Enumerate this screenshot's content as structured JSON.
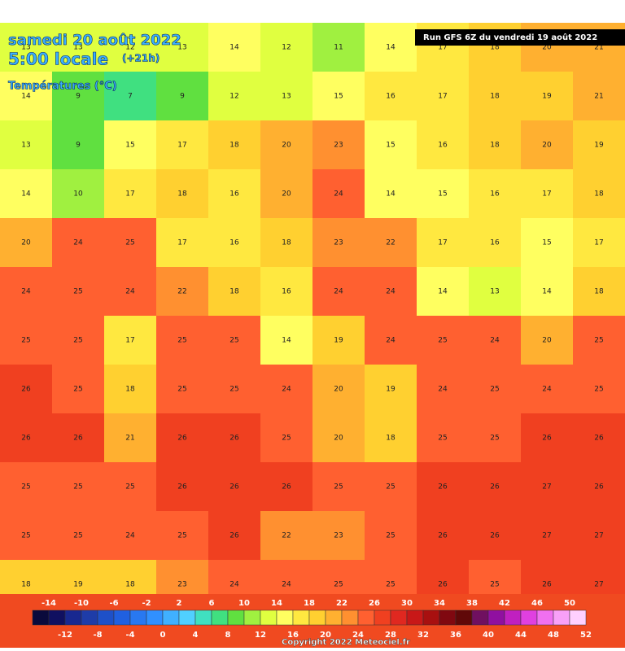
{
  "header": {
    "date": "samedi 20 août 2022",
    "time": "5:00 locale",
    "lead": "(+21h)",
    "field": "Températures (°C)",
    "run": "Run GFS 6Z du vendredi 19 août 2022"
  },
  "map": {
    "grid": [
      [
        13,
        13,
        12,
        13,
        14,
        12,
        11,
        14,
        17,
        18,
        20,
        21
      ],
      [
        14,
        9,
        7,
        9,
        12,
        13,
        15,
        16,
        17,
        18,
        19,
        21
      ],
      [
        13,
        9,
        15,
        17,
        18,
        20,
        23,
        15,
        16,
        18,
        20,
        19
      ],
      [
        14,
        10,
        17,
        18,
        16,
        20,
        24,
        14,
        15,
        16,
        17,
        18
      ],
      [
        20,
        24,
        25,
        17,
        16,
        18,
        23,
        22,
        17,
        16,
        15,
        17
      ],
      [
        24,
        25,
        24,
        22,
        18,
        16,
        24,
        24,
        14,
        13,
        14,
        18
      ],
      [
        25,
        25,
        17,
        25,
        25,
        14,
        19,
        24,
        25,
        24,
        20,
        25
      ],
      [
        26,
        25,
        18,
        25,
        25,
        24,
        20,
        19,
        24,
        25,
        24,
        25
      ],
      [
        26,
        26,
        21,
        26,
        26,
        25,
        20,
        18,
        25,
        25,
        26,
        26
      ],
      [
        25,
        25,
        25,
        26,
        26,
        26,
        25,
        25,
        26,
        26,
        27,
        26
      ],
      [
        25,
        25,
        24,
        25,
        26,
        22,
        23,
        25,
        26,
        26,
        27,
        27
      ],
      [
        18,
        19,
        18,
        23,
        24,
        24,
        25,
        25,
        26,
        25,
        26,
        27
      ]
    ]
  },
  "legend": {
    "top_ticks": [
      -14,
      -10,
      -6,
      -2,
      2,
      6,
      10,
      14,
      18,
      22,
      26,
      30,
      34,
      38,
      42,
      46,
      50
    ],
    "bottom_ticks": [
      -12,
      -8,
      -4,
      0,
      4,
      8,
      12,
      16,
      20,
      24,
      28,
      32,
      36,
      40,
      44,
      48,
      52
    ],
    "colors": [
      "#0a0a3c",
      "#101060",
      "#182890",
      "#1e3ca8",
      "#1e50c8",
      "#2060e0",
      "#2878f0",
      "#3090ff",
      "#40b0ff",
      "#50d0ff",
      "#40e0c0",
      "#40e080",
      "#60e040",
      "#a0f040",
      "#e0ff40",
      "#ffff60",
      "#ffe840",
      "#ffd030",
      "#ffb030",
      "#ff9030",
      "#ff6030",
      "#f04020",
      "#e02820",
      "#c81818",
      "#a81010",
      "#800810",
      "#600808",
      "#701060",
      "#9010a0",
      "#c020c0",
      "#e040e0",
      "#f070f0",
      "#f8a0f8",
      "#ffd0ff"
    ]
  },
  "footer": {
    "copyright": "Copyright 2022 Meteociel.fr"
  }
}
